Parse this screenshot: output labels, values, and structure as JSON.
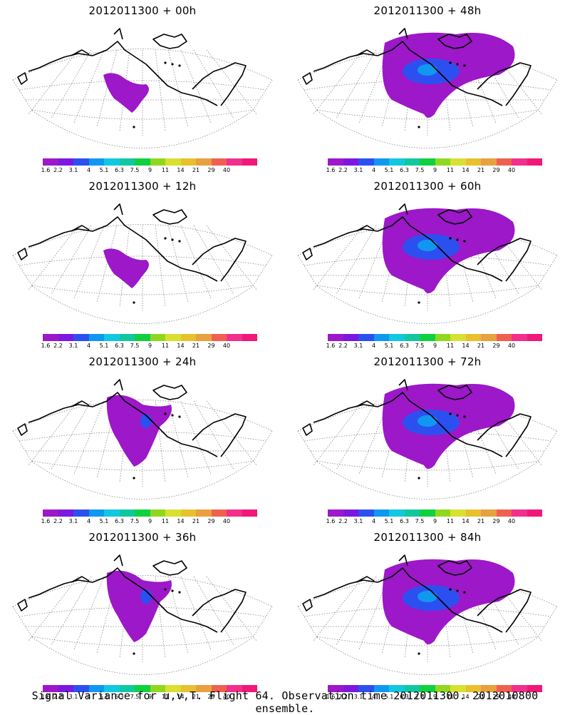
{
  "colorbar": {
    "ticks": [
      "1.6",
      "2.2",
      "3.1",
      "4",
      "5.1",
      "6.3",
      "7.5",
      "9",
      "11",
      "14",
      "21",
      "29",
      "40"
    ],
    "colors": [
      "#9c18c8",
      "#7c18e0",
      "#2c50f0",
      "#1098f0",
      "#10c8e0",
      "#10c8a0",
      "#10d040",
      "#90d820",
      "#d8e030",
      "#e8c030",
      "#e8a040",
      "#f06050",
      "#f0308c",
      "#f01878"
    ]
  },
  "panels": [
    {
      "title": "2012011300 + 00h",
      "coverage": "small",
      "blue": false
    },
    {
      "title": "2012011300 + 48h",
      "coverage": "large",
      "blue": true
    },
    {
      "title": "2012011300 + 12h",
      "coverage": "small",
      "blue": true
    },
    {
      "title": "2012011300 + 60h",
      "coverage": "large",
      "blue": true
    },
    {
      "title": "2012011300 + 24h",
      "coverage": "medium",
      "blue": true
    },
    {
      "title": "2012011300 + 72h",
      "coverage": "large",
      "blue": true
    },
    {
      "title": "2012011300 + 36h",
      "coverage": "medium",
      "blue": true
    },
    {
      "title": "2012011300 + 84h",
      "coverage": "large",
      "blue": true
    }
  ],
  "footer": "Signal Variance for u,v,T. Flight 64. Observation time 2012011300. 2012010800 ensemble."
}
